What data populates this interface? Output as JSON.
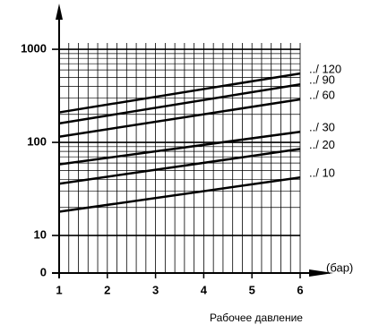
{
  "chart_data": {
    "type": "line",
    "log_y": true,
    "x": [
      1,
      6
    ],
    "series": [
      {
        "name": "../ 120",
        "color": "#000000",
        "values": [
          210,
          550
        ]
      },
      {
        "name": "../ 90",
        "color": "#000000",
        "values": [
          160,
          420
        ]
      },
      {
        "name": "../ 60",
        "color": "#000000",
        "values": [
          115,
          290
        ]
      },
      {
        "name": "../ 30",
        "color": "#000000",
        "values": [
          58,
          130
        ]
      },
      {
        "name": "../ 20",
        "color": "#000000",
        "values": [
          36,
          85
        ]
      },
      {
        "name": "../ 10",
        "color": "#000000",
        "values": [
          18,
          42
        ]
      }
    ],
    "xlim": [
      1,
      6
    ],
    "xticks": [
      1,
      2,
      3,
      4,
      5,
      6
    ],
    "ylim": [
      3.95,
      1170
    ],
    "yticks": [
      10,
      100,
      1000
    ],
    "y_origin_label": "0",
    "x_label": "(бар)",
    "caption": "Рабочее давление",
    "grid": true
  }
}
